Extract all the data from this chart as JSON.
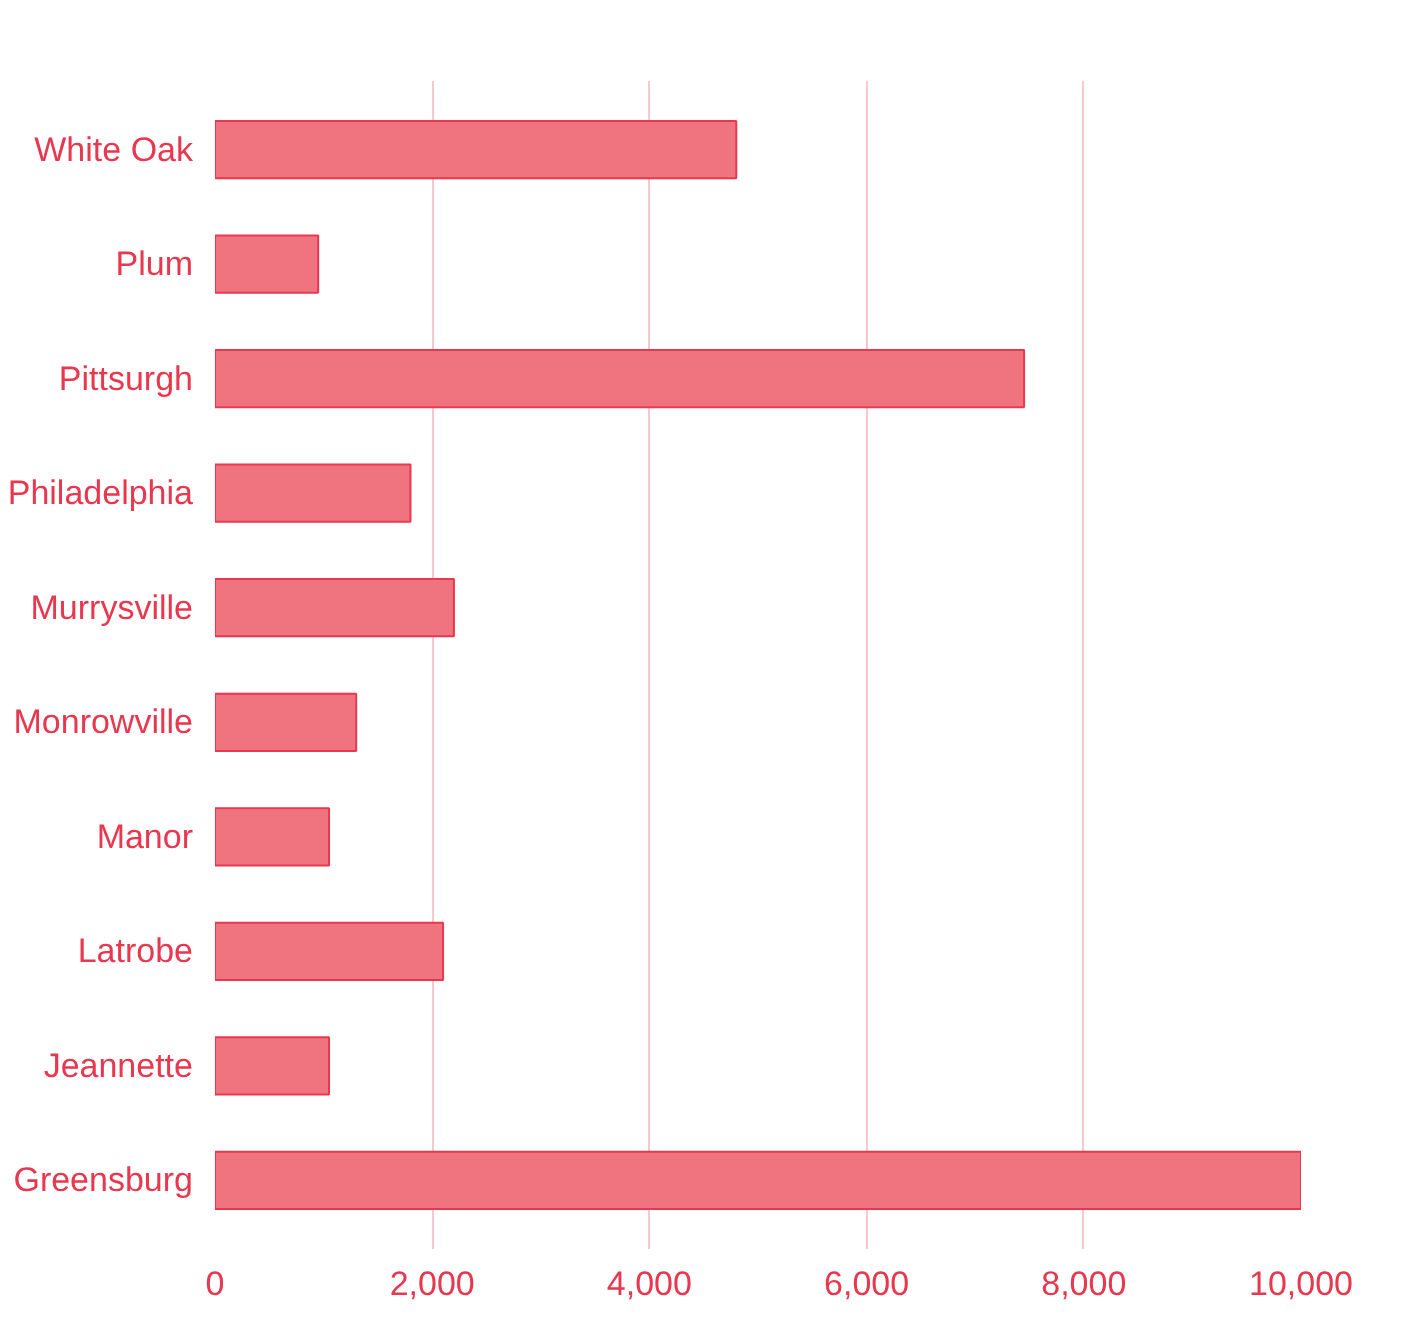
{
  "chart_data": {
    "type": "bar",
    "orientation": "horizontal",
    "categories": [
      "White Oak",
      "Plum",
      "Pittsurgh",
      "Philadelphia",
      "Murrysville",
      "Monrowville",
      "Manor",
      "Latrobe",
      "Jeannette",
      "Greensburg"
    ],
    "values": [
      4800,
      950,
      7450,
      1800,
      2200,
      1300,
      1050,
      2100,
      1050,
      10000
    ],
    "color": "#f07480",
    "xlim": [
      0,
      10000
    ],
    "xticks": [
      {
        "value": 0,
        "label": "0"
      },
      {
        "value": 2000,
        "label": "2,000"
      },
      {
        "value": 4000,
        "label": "4,000"
      },
      {
        "value": 6000,
        "label": "6,000"
      },
      {
        "value": 8000,
        "label": "8,000"
      },
      {
        "value": 10000,
        "label": "10,000"
      }
    ],
    "grid": "x"
  }
}
